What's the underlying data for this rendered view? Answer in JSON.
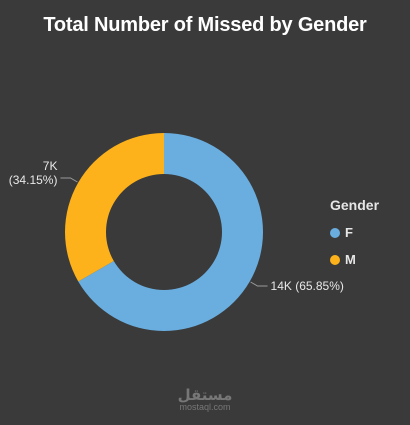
{
  "chart_data": {
    "type": "pie",
    "donut": true,
    "title": "Total Number of Missed by Gender",
    "legend_title": "Gender",
    "legend_position": "right",
    "slices": [
      {
        "label": "F",
        "value": 14000,
        "percent": 65.85,
        "value_label": "14K",
        "percent_label": "(65.85%)",
        "color": "#6aaee0"
      },
      {
        "label": "M",
        "value": 7000,
        "percent": 34.15,
        "value_label": "7K",
        "percent_label": "(34.15%)",
        "color": "#fdb21b"
      }
    ]
  },
  "watermark": {
    "arabic": "مستقل",
    "latin": "mostaql.com"
  },
  "colors": {
    "background": "#3a3a3a"
  }
}
